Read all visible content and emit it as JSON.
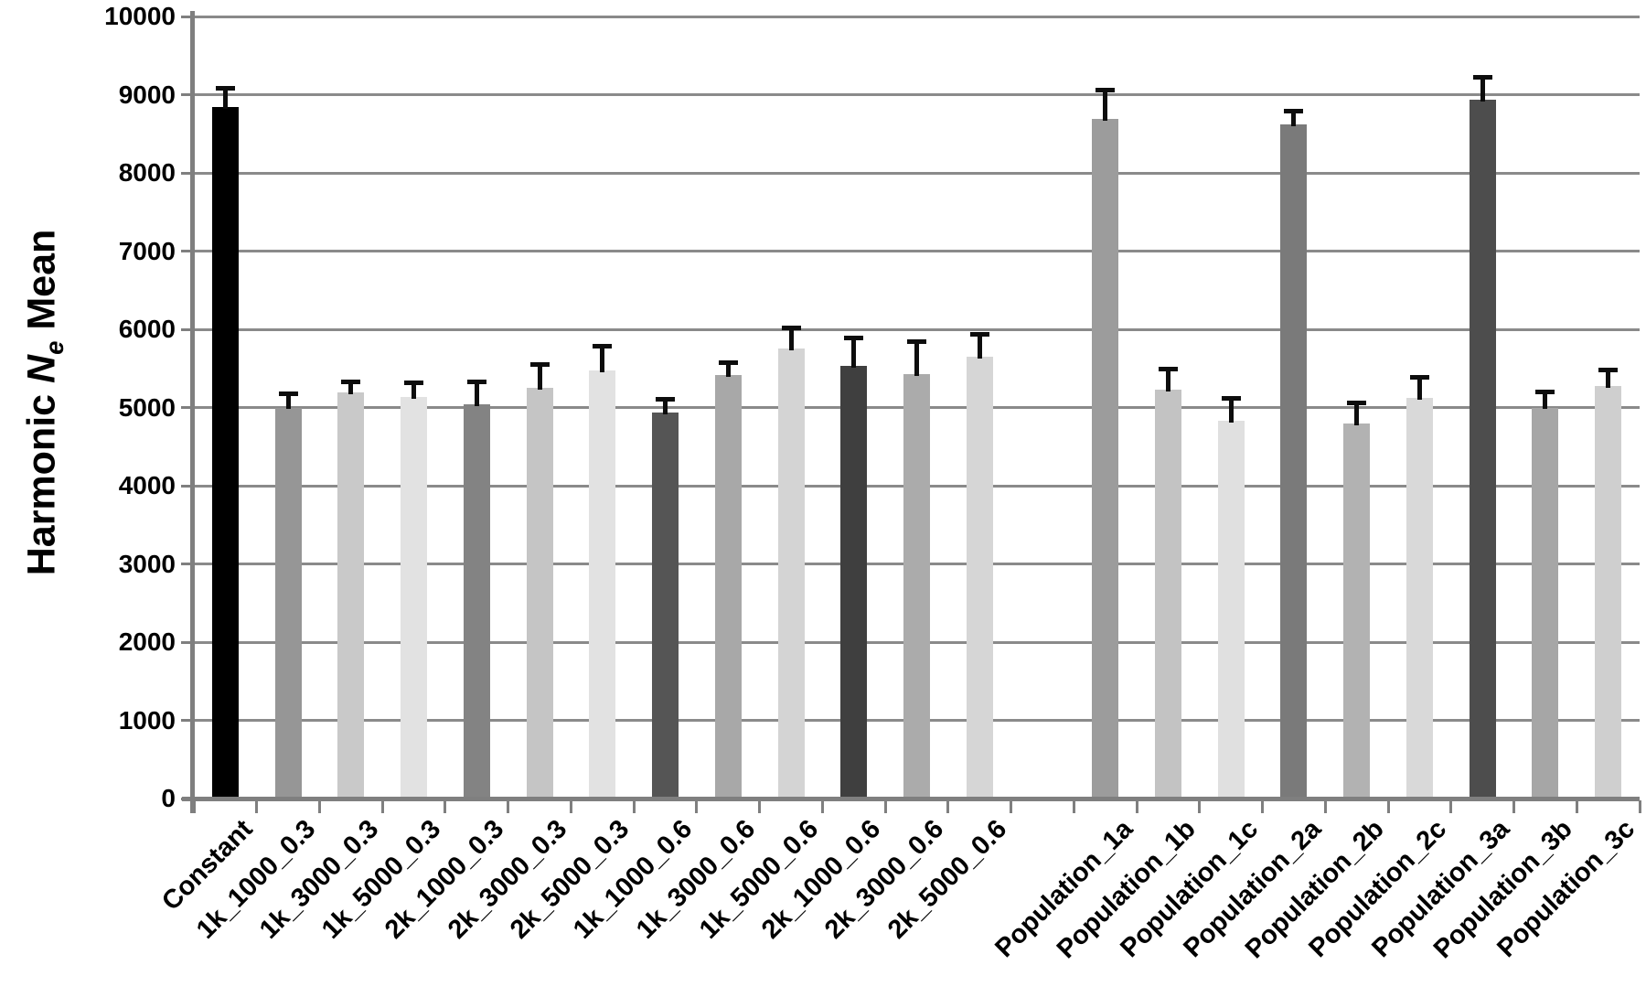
{
  "chart_data": {
    "type": "bar",
    "title": "",
    "ylabel": "Harmonic Ne Mean",
    "ylabel_parts": {
      "prefix": "Harmonic ",
      "var": "N",
      "sub": "e",
      "suffix": " Mean"
    },
    "xlabel": "",
    "ylim": [
      0,
      10000
    ],
    "ytick_step": 1000,
    "yticks": [
      0,
      1000,
      2000,
      3000,
      4000,
      5000,
      6000,
      7000,
      8000,
      9000,
      10000
    ],
    "grid": true,
    "legend": "none",
    "error_bars": "upper-only",
    "total_slots": 23,
    "gap_slot_index": 13,
    "categories": [
      "Constant",
      "1k_1000_0.3",
      "1k_3000_0.3",
      "1k_5000_0.3",
      "2k_1000_0.3",
      "2k_3000_0.3",
      "2k_5000_0.3",
      "1k_1000_0.6",
      "1k_3000_0.6",
      "1k_5000_0.6",
      "2k_1000_0.6",
      "2k_3000_0.6",
      "2k_5000_0.6",
      "Population_1a",
      "Population_1b",
      "Population_1c",
      "Population_2a",
      "Population_2b",
      "Population_2c",
      "Population_3a",
      "Population_3b",
      "Population_3c"
    ],
    "bars": [
      {
        "label": "Constant",
        "value": 8840,
        "error_upper": 250,
        "color": "#000000",
        "slot": 0
      },
      {
        "label": "1k_1000_0.3",
        "value": 5000,
        "error_upper": 180,
        "color": "#969696",
        "slot": 1
      },
      {
        "label": "1k_3000_0.3",
        "value": 5190,
        "error_upper": 140,
        "color": "#c9c9c9",
        "slot": 2
      },
      {
        "label": "1k_5000_0.3",
        "value": 5130,
        "error_upper": 190,
        "color": "#e2e2e2",
        "slot": 3
      },
      {
        "label": "2k_1000_0.3",
        "value": 5040,
        "error_upper": 290,
        "color": "#838383",
        "slot": 4
      },
      {
        "label": "2k_3000_0.3",
        "value": 5250,
        "error_upper": 310,
        "color": "#c5c5c5",
        "slot": 5
      },
      {
        "label": "2k_5000_0.3",
        "value": 5470,
        "error_upper": 320,
        "color": "#e2e2e2",
        "slot": 6
      },
      {
        "label": "1k_1000_0.6",
        "value": 4930,
        "error_upper": 180,
        "color": "#555555",
        "slot": 7
      },
      {
        "label": "1k_3000_0.6",
        "value": 5420,
        "error_upper": 160,
        "color": "#a8a8a8",
        "slot": 8
      },
      {
        "label": "1k_5000_0.6",
        "value": 5760,
        "error_upper": 260,
        "color": "#d4d4d4",
        "slot": 9
      },
      {
        "label": "2k_1000_0.6",
        "value": 5530,
        "error_upper": 370,
        "color": "#3f3f3f",
        "slot": 10
      },
      {
        "label": "2k_3000_0.6",
        "value": 5430,
        "error_upper": 420,
        "color": "#ababab",
        "slot": 11
      },
      {
        "label": "2k_5000_0.6",
        "value": 5650,
        "error_upper": 290,
        "color": "#d6d6d6",
        "slot": 12
      },
      {
        "label": "Population_1a",
        "value": 8690,
        "error_upper": 370,
        "color": "#9c9c9c",
        "slot": 14
      },
      {
        "label": "Population_1b",
        "value": 5230,
        "error_upper": 270,
        "color": "#c3c3c3",
        "slot": 15
      },
      {
        "label": "Population_1c",
        "value": 4830,
        "error_upper": 290,
        "color": "#e0e0e0",
        "slot": 16
      },
      {
        "label": "Population_2a",
        "value": 8620,
        "error_upper": 170,
        "color": "#7a7a7a",
        "slot": 17
      },
      {
        "label": "Population_2b",
        "value": 4800,
        "error_upper": 260,
        "color": "#b2b2b2",
        "slot": 18
      },
      {
        "label": "Population_2c",
        "value": 5120,
        "error_upper": 270,
        "color": "#d9d9d9",
        "slot": 19
      },
      {
        "label": "Population_3a",
        "value": 8930,
        "error_upper": 300,
        "color": "#4d4d4d",
        "slot": 20
      },
      {
        "label": "Population_3b",
        "value": 5000,
        "error_upper": 200,
        "color": "#a6a6a6",
        "slot": 21
      },
      {
        "label": "Population_3c",
        "value": 5280,
        "error_upper": 210,
        "color": "#cfcfcf",
        "slot": 22
      }
    ],
    "colors": {
      "background": "#ffffff",
      "grid": "#8a8a8a",
      "axis": "#7f7f7f",
      "tick": "#7f7f7f",
      "error_bar": "#0d0d0d",
      "text": "#000000"
    }
  }
}
